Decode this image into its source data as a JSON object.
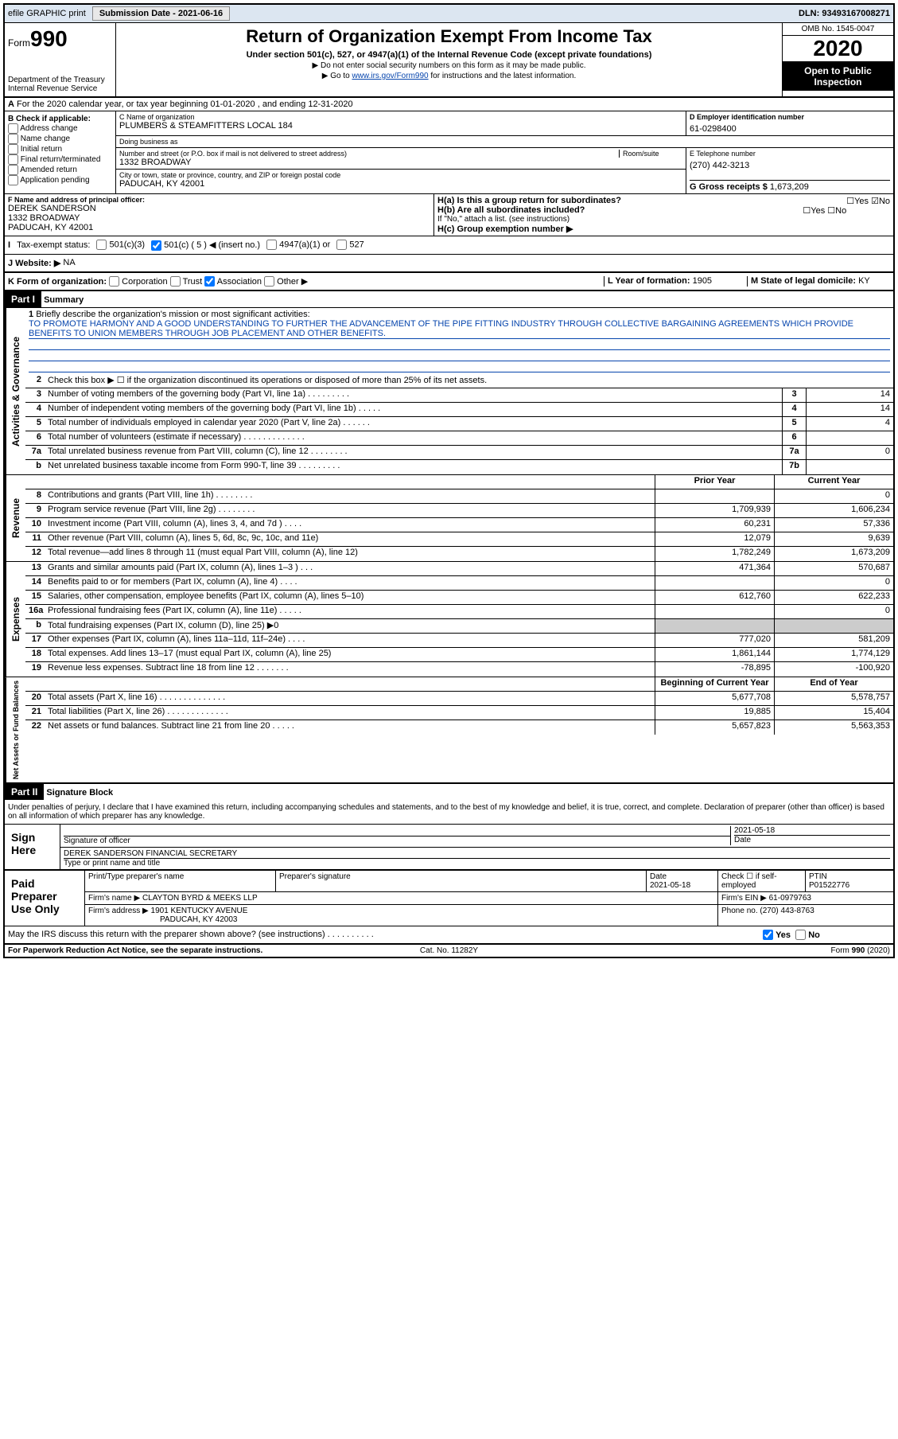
{
  "topbar": {
    "efile": "efile GRAPHIC print",
    "submission_label": "Submission Date - 2021-06-16",
    "dln": "DLN: 93493167008271"
  },
  "header": {
    "form_prefix": "Form",
    "form_num": "990",
    "dept": "Department of the Treasury\nInternal Revenue Service",
    "title": "Return of Organization Exempt From Income Tax",
    "subtitle": "Under section 501(c), 527, or 4947(a)(1) of the Internal Revenue Code (except private foundations)",
    "note1": "▶ Do not enter social security numbers on this form as it may be made public.",
    "note2_pre": "▶ Go to ",
    "note2_link": "www.irs.gov/Form990",
    "note2_post": " for instructions and the latest information.",
    "omb": "OMB No. 1545-0047",
    "year": "2020",
    "inspect": "Open to Public Inspection"
  },
  "rowA": {
    "text": "For the 2020 calendar year, or tax year beginning 01-01-2020    , and ending 12-31-2020"
  },
  "boxB": {
    "label": "B Check if applicable:",
    "opts": [
      "Address change",
      "Name change",
      "Initial return",
      "Final return/terminated",
      "Amended return",
      "Application pending"
    ]
  },
  "boxC": {
    "label": "C Name of organization",
    "name": "PLUMBERS & STEAMFITTERS LOCAL 184",
    "dba_label": "Doing business as",
    "dba": "",
    "addr_label": "Number and street (or P.O. box if mail is not delivered to street address)",
    "room_label": "Room/suite",
    "addr": "1332 BROADWAY",
    "city_label": "City or town, state or province, country, and ZIP or foreign postal code",
    "city": "PADUCAH, KY  42001"
  },
  "boxD": {
    "label": "D Employer identification number",
    "ein": "61-0298400"
  },
  "boxE": {
    "label": "E Telephone number",
    "phone": "(270) 442-3213"
  },
  "boxG": {
    "label": "G Gross receipts $",
    "val": "1,673,209"
  },
  "boxF": {
    "label": "F  Name and address of principal officer:",
    "name": "DEREK SANDERSON",
    "addr": "1332 BROADWAY",
    "city": "PADUCAH, KY  42001"
  },
  "boxH": {
    "a": "H(a)  Is this a group return for subordinates?",
    "b": "H(b)  Are all subordinates included?",
    "b_note": "If \"No,\" attach a list. (see instructions)",
    "c": "H(c)  Group exemption number ▶",
    "yes": "Yes",
    "no": "No"
  },
  "boxI": {
    "label": "Tax-exempt status:",
    "opts": [
      "501(c)(3)",
      "501(c) ( 5 ) ◀ (insert no.)",
      "4947(a)(1) or",
      "527"
    ]
  },
  "boxJ": {
    "label": "J  Website: ▶",
    "val": "NA"
  },
  "boxK": {
    "label": "K Form of organization:",
    "opts": [
      "Corporation",
      "Trust",
      "Association",
      "Other ▶"
    ]
  },
  "boxL": {
    "label": "L Year of formation:",
    "val": "1905"
  },
  "boxM": {
    "label": "M State of legal domicile:",
    "val": "KY"
  },
  "part1": {
    "label": "Part I",
    "title": "Summary"
  },
  "mission": {
    "num": "1",
    "label": "Briefly describe the organization's mission or most significant activities:",
    "text": "TO PROMOTE HARMONY AND A GOOD UNDERSTANDING TO FURTHER THE ADVANCEMENT OF THE PIPE FITTING INDUSTRY THROUGH COLLECTIVE BARGAINING AGREEMENTS WHICH PROVIDE BENEFITS TO UNION MEMBERS THROUGH JOB PLACEMENT AND OTHER BENEFITS."
  },
  "gov": {
    "side": "Activities & Governance",
    "lines": [
      {
        "n": "2",
        "t": "Check this box ▶ ☐ if the organization discontinued its operations or disposed of more than 25% of its net assets."
      },
      {
        "n": "3",
        "t": "Number of voting members of the governing body (Part VI, line 1a)  .   .   .   .   .   .   .   .   .",
        "box": "3",
        "v": "14"
      },
      {
        "n": "4",
        "t": "Number of independent voting members of the governing body (Part VI, line 1b)   .   .   .   .   .",
        "box": "4",
        "v": "14"
      },
      {
        "n": "5",
        "t": "Total number of individuals employed in calendar year 2020 (Part V, line 2a)   .   .   .   .   .   .",
        "box": "5",
        "v": "4"
      },
      {
        "n": "6",
        "t": "Total number of volunteers (estimate if necessary)   .   .   .   .   .   .   .   .   .   .   .   .   .",
        "box": "6",
        "v": ""
      },
      {
        "n": "7a",
        "t": "Total unrelated business revenue from Part VIII, column (C), line 12   .   .   .   .   .   .   .   .",
        "box": "7a",
        "v": "0"
      },
      {
        "n": "b",
        "t": "Net unrelated business taxable income from Form 990-T, line 39   .   .   .   .   .   .   .   .   .",
        "box": "7b",
        "v": ""
      }
    ]
  },
  "rev": {
    "side": "Revenue",
    "hdr_prior": "Prior Year",
    "hdr_curr": "Current Year",
    "lines": [
      {
        "n": "8",
        "t": "Contributions and grants (Part VIII, line 1h)   .   .   .   .   .   .   .   .",
        "p": "",
        "c": "0"
      },
      {
        "n": "9",
        "t": "Program service revenue (Part VIII, line 2g)   .   .   .   .   .   .   .   .",
        "p": "1,709,939",
        "c": "1,606,234"
      },
      {
        "n": "10",
        "t": "Investment income (Part VIII, column (A), lines 3, 4, and 7d )   .   .   .   .",
        "p": "60,231",
        "c": "57,336"
      },
      {
        "n": "11",
        "t": "Other revenue (Part VIII, column (A), lines 5, 6d, 8c, 9c, 10c, and 11e)",
        "p": "12,079",
        "c": "9,639"
      },
      {
        "n": "12",
        "t": "Total revenue—add lines 8 through 11 (must equal Part VIII, column (A), line 12)",
        "p": "1,782,249",
        "c": "1,673,209"
      }
    ]
  },
  "exp": {
    "side": "Expenses",
    "lines": [
      {
        "n": "13",
        "t": "Grants and similar amounts paid (Part IX, column (A), lines 1–3 )   .   .   .",
        "p": "471,364",
        "c": "570,687"
      },
      {
        "n": "14",
        "t": "Benefits paid to or for members (Part IX, column (A), line 4)   .   .   .   .",
        "p": "",
        "c": "0"
      },
      {
        "n": "15",
        "t": "Salaries, other compensation, employee benefits (Part IX, column (A), lines 5–10)",
        "p": "612,760",
        "c": "622,233"
      },
      {
        "n": "16a",
        "t": "Professional fundraising fees (Part IX, column (A), line 11e)   .   .   .   .   .",
        "p": "",
        "c": "0"
      },
      {
        "n": "b",
        "t": "Total fundraising expenses (Part IX, column (D), line 25) ▶0",
        "shaded": true
      },
      {
        "n": "17",
        "t": "Other expenses (Part IX, column (A), lines 11a–11d, 11f–24e)   .   .   .   .",
        "p": "777,020",
        "c": "581,209"
      },
      {
        "n": "18",
        "t": "Total expenses. Add lines 13–17 (must equal Part IX, column (A), line 25)",
        "p": "1,861,144",
        "c": "1,774,129"
      },
      {
        "n": "19",
        "t": "Revenue less expenses. Subtract line 18 from line 12 .   .   .   .   .   .   .",
        "p": "-78,895",
        "c": "-100,920"
      }
    ]
  },
  "net": {
    "side": "Net Assets or Fund Balances",
    "hdr_begin": "Beginning of Current Year",
    "hdr_end": "End of Year",
    "lines": [
      {
        "n": "20",
        "t": "Total assets (Part X, line 16)  .   .   .   .   .   .   .   .   .   .   .   .   .   .",
        "p": "5,677,708",
        "c": "5,578,757"
      },
      {
        "n": "21",
        "t": "Total liabilities (Part X, line 26)   .   .   .   .   .   .   .   .   .   .   .   .   .",
        "p": "19,885",
        "c": "15,404"
      },
      {
        "n": "22",
        "t": "Net assets or fund balances. Subtract line 21 from line 20   .   .   .   .   .",
        "p": "5,657,823",
        "c": "5,563,353"
      }
    ]
  },
  "part2": {
    "label": "Part II",
    "title": "Signature Block"
  },
  "sig": {
    "decl": "Under penalties of perjury, I declare that I have examined this return, including accompanying schedules and statements, and to the best of my knowledge and belief, it is true, correct, and complete. Declaration of preparer (other than officer) is based on all information of which preparer has any knowledge.",
    "sign_here": "Sign Here",
    "sig_officer": "Signature of officer",
    "date_label": "Date",
    "date": "2021-05-18",
    "name": "DEREK SANDERSON  FINANCIAL SECRETARY",
    "name_label": "Type or print name and title"
  },
  "prep": {
    "label": "Paid Preparer Use Only",
    "h1": "Print/Type preparer's name",
    "h2": "Preparer's signature",
    "h3": "Date",
    "h4": "Check ☐ if self-employed",
    "h5": "PTIN",
    "date": "2021-05-18",
    "ptin": "P01522776",
    "firm_label": "Firm's name    ▶",
    "firm": "CLAYTON BYRD & MEEKS LLP",
    "ein_label": "Firm's EIN ▶",
    "ein": "61-0979763",
    "addr_label": "Firm's address ▶",
    "addr": "1901 KENTUCKY AVENUE",
    "city": "PADUCAH, KY  42003",
    "phone_label": "Phone no.",
    "phone": "(270) 443-8763"
  },
  "discuss": {
    "text": "May the IRS discuss this return with the preparer shown above? (see instructions)   .   .   .   .   .   .   .   .   .   .",
    "yes": "Yes",
    "no": "No"
  },
  "footer": {
    "left": "For Paperwork Reduction Act Notice, see the separate instructions.",
    "mid": "Cat. No. 11282Y",
    "right": "Form 990 (2020)"
  }
}
